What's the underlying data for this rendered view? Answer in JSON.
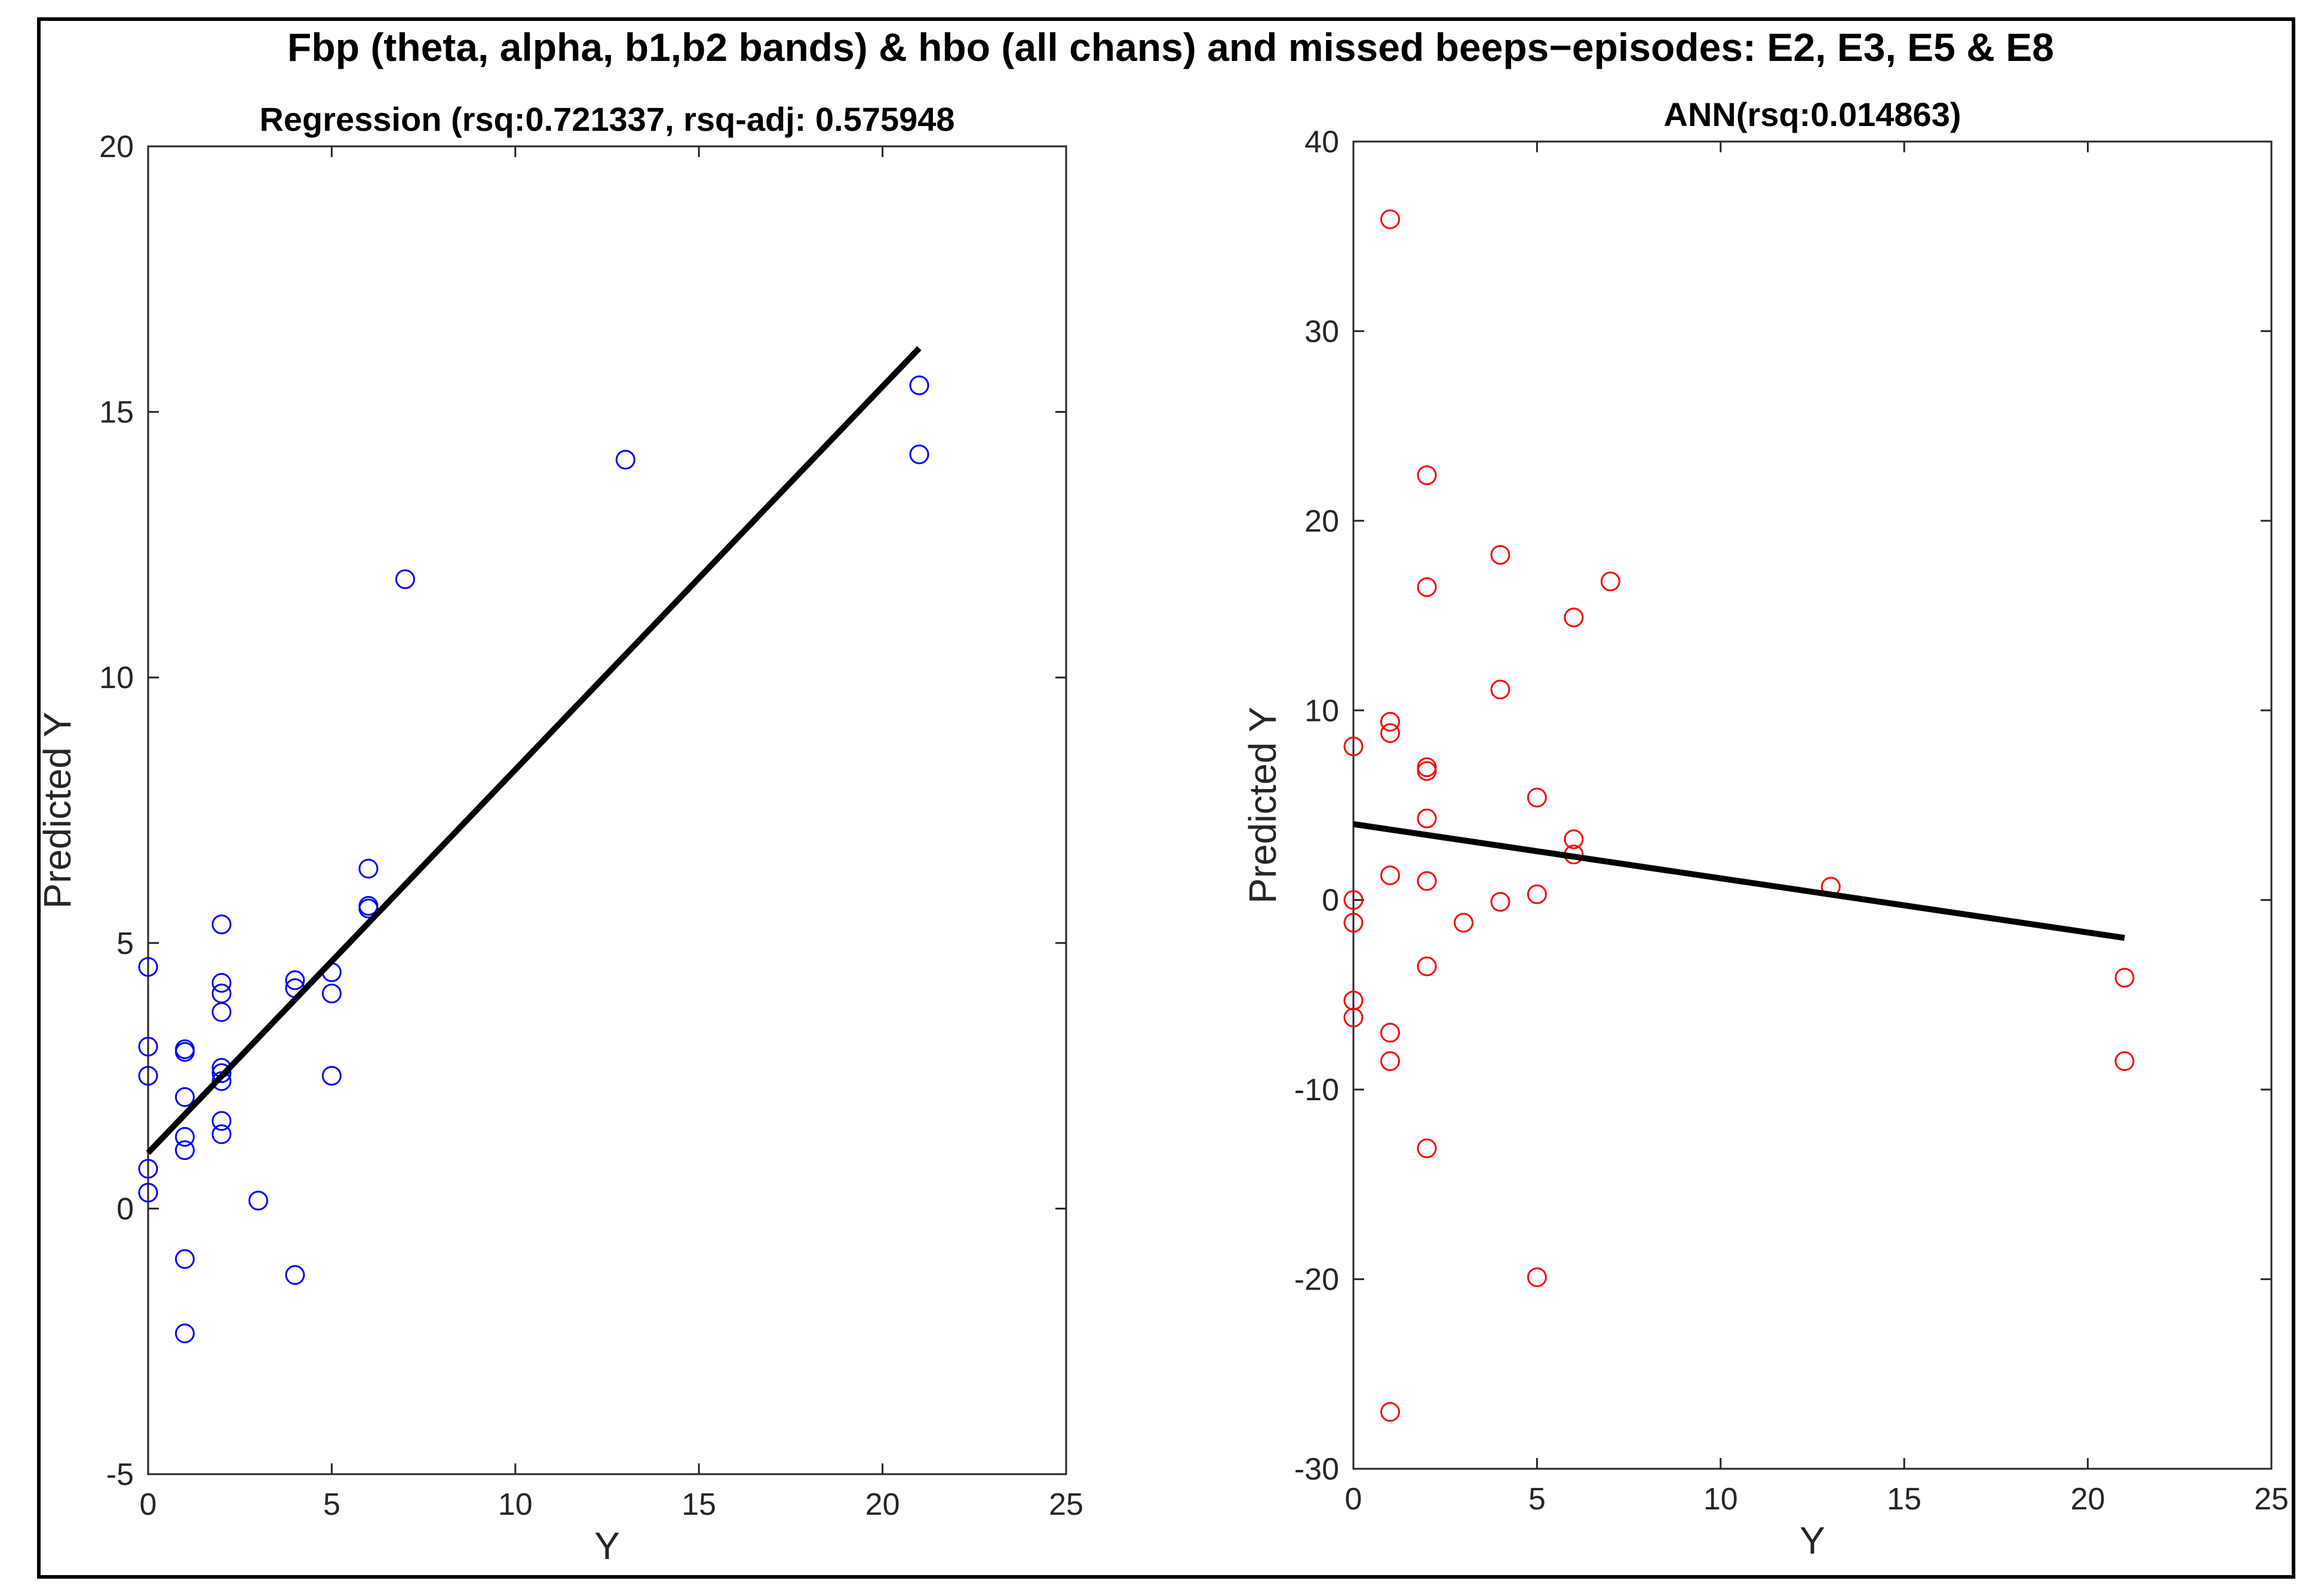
{
  "figure": {
    "title": "Fbp (theta, alpha, b1,b2 bands) & hbo (all chans) and missed beeps−episodes: E2, E3, E5 & E8"
  },
  "chart_data": [
    {
      "type": "scatter",
      "title": "Regression (rsq:0.721337, rsq-adj: 0.575948",
      "xlabel": "Y",
      "ylabel": "Predicted Y",
      "xlim": [
        0,
        25
      ],
      "ylim": [
        -5,
        20
      ],
      "xticks": [
        0,
        5,
        10,
        15,
        20,
        25
      ],
      "yticks": [
        -5,
        0,
        5,
        10,
        15,
        20
      ],
      "marker_color": "#0000ff",
      "fit_color": "#000000",
      "grid": false,
      "points": [
        [
          0,
          4.55
        ],
        [
          0,
          3.05
        ],
        [
          0,
          2.5
        ],
        [
          0,
          0.75
        ],
        [
          0,
          0.3
        ],
        [
          1,
          3.0
        ],
        [
          1,
          2.95
        ],
        [
          1,
          2.1
        ],
        [
          1,
          1.35
        ],
        [
          1,
          1.1
        ],
        [
          1,
          -0.95
        ],
        [
          1,
          -2.35
        ],
        [
          2,
          5.35
        ],
        [
          2,
          4.25
        ],
        [
          2,
          4.05
        ],
        [
          2,
          3.7
        ],
        [
          2,
          2.65
        ],
        [
          2,
          2.55
        ],
        [
          2,
          2.4
        ],
        [
          2,
          1.65
        ],
        [
          2,
          1.4
        ],
        [
          3,
          0.15
        ],
        [
          4,
          4.3
        ],
        [
          4,
          4.15
        ],
        [
          4,
          -1.25
        ],
        [
          5,
          4.45
        ],
        [
          5,
          4.05
        ],
        [
          5,
          2.5
        ],
        [
          6,
          6.4
        ],
        [
          6,
          5.7
        ],
        [
          6,
          5.65
        ],
        [
          7,
          11.85
        ],
        [
          13,
          14.1
        ],
        [
          21,
          15.5
        ],
        [
          21,
          14.2
        ]
      ],
      "fit_line": {
        "x": [
          0,
          21
        ],
        "y": [
          1.05,
          16.2
        ]
      }
    },
    {
      "type": "scatter",
      "title": "ANN(rsq:0.014863)",
      "xlabel": "Y",
      "ylabel": "Predicted Y",
      "xlim": [
        0,
        25
      ],
      "ylim": [
        -30,
        40
      ],
      "xticks": [
        0,
        5,
        10,
        15,
        20,
        25
      ],
      "yticks": [
        -30,
        -20,
        -10,
        0,
        10,
        20,
        30,
        40
      ],
      "marker_color": "#ff0000",
      "fit_color": "#000000",
      "grid": false,
      "points": [
        [
          0,
          8.1
        ],
        [
          0,
          0
        ],
        [
          0,
          -1.2
        ],
        [
          0,
          -5.3
        ],
        [
          0,
          -6.2
        ],
        [
          1,
          35.9
        ],
        [
          1,
          9.4
        ],
        [
          1,
          8.8
        ],
        [
          1,
          1.3
        ],
        [
          1,
          -7.0
        ],
        [
          1,
          -8.5
        ],
        [
          1,
          -27.0
        ],
        [
          2,
          22.4
        ],
        [
          2,
          16.5
        ],
        [
          2,
          7.0
        ],
        [
          2,
          6.8
        ],
        [
          2,
          4.3
        ],
        [
          2,
          1.0
        ],
        [
          2,
          -3.5
        ],
        [
          2,
          -13.1
        ],
        [
          3,
          -1.2
        ],
        [
          4,
          18.2
        ],
        [
          4,
          11.1
        ],
        [
          4,
          -0.1
        ],
        [
          5,
          5.4
        ],
        [
          5,
          0.3
        ],
        [
          5,
          -19.9
        ],
        [
          6,
          14.9
        ],
        [
          6,
          3.2
        ],
        [
          6,
          2.4
        ],
        [
          7,
          16.8
        ],
        [
          13,
          0.7
        ],
        [
          21,
          -4.1
        ],
        [
          21,
          -8.5
        ]
      ],
      "fit_line": {
        "x": [
          0,
          21
        ],
        "y": [
          4.0,
          -2.0
        ]
      }
    }
  ]
}
